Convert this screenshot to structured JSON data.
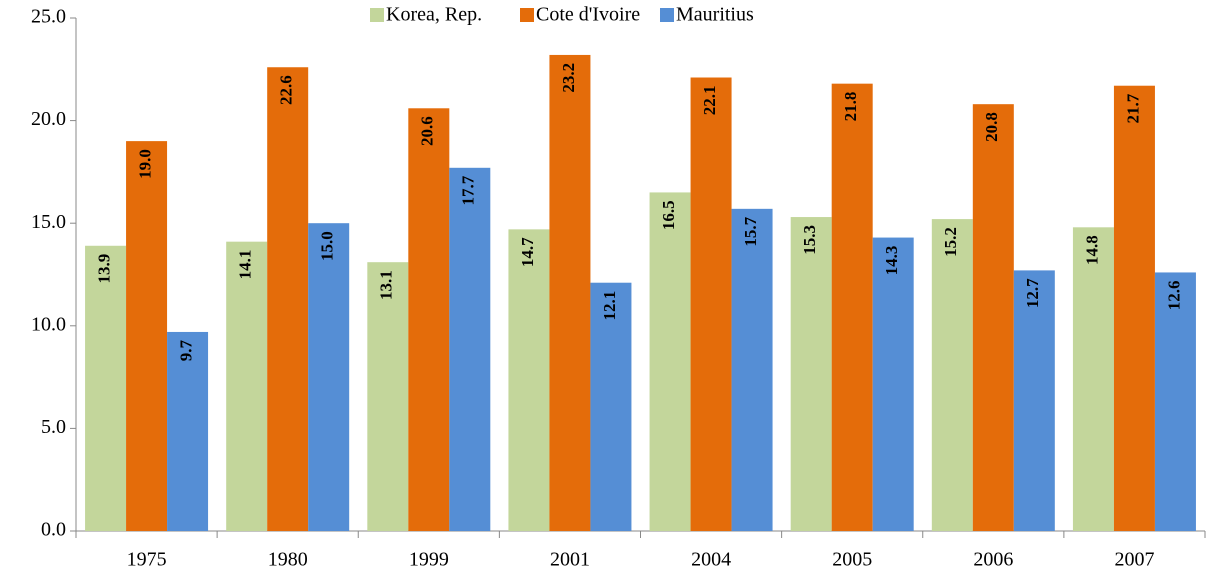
{
  "chart_data": {
    "type": "bar",
    "categories": [
      "1975",
      "1980",
      "1999",
      "2001",
      "2004",
      "2005",
      "2006",
      "2007"
    ],
    "series": [
      {
        "name": "Korea, Rep.",
        "color": "#c3d69b",
        "values": [
          13.9,
          14.1,
          13.1,
          14.7,
          16.5,
          15.3,
          15.2,
          14.8
        ],
        "value_labels": [
          "13.9",
          "14.1",
          "13.1",
          "14.7",
          "16.5",
          "15.3",
          "15.2",
          "14.8"
        ]
      },
      {
        "name": "Cote d'Ivoire",
        "color": "#e46c0a",
        "values": [
          19,
          22.6,
          20.6,
          23.2,
          22.1,
          21.8,
          20.8,
          21.7
        ],
        "value_labels": [
          "19.0",
          "22.6",
          "20.6",
          "23.2",
          "22.1",
          "21.8",
          "20.8",
          "21.7"
        ]
      },
      {
        "name": "Mauritius",
        "color": "#558ed5",
        "values": [
          9.7,
          15,
          17.7,
          12.1,
          15.7,
          14.3,
          12.7,
          12.6
        ],
        "value_labels": [
          "9.7",
          "15.0",
          "17.7",
          "12.1",
          "15.7",
          "14.3",
          "12.7",
          "12.6"
        ]
      }
    ],
    "ylim": [
      0,
      25
    ],
    "yticks": [
      {
        "value": 0,
        "label": "0.0"
      },
      {
        "value": 5,
        "label": "5.0"
      },
      {
        "value": 10,
        "label": "10.0"
      },
      {
        "value": 15,
        "label": "15.0"
      },
      {
        "value": 20,
        "label": "20.0"
      },
      {
        "value": 25,
        "label": "25.0"
      }
    ],
    "grid": false,
    "legend": "top"
  }
}
